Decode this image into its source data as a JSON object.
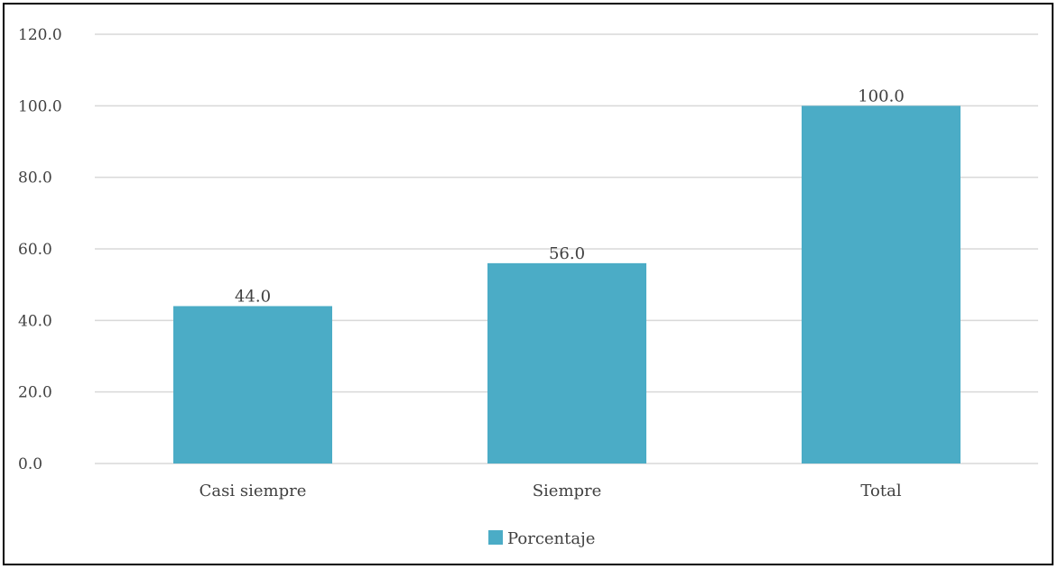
{
  "chart_data": {
    "type": "bar",
    "categories": [
      "Casi siempre",
      "Siempre",
      "Total"
    ],
    "series": [
      {
        "name": "Porcentaje",
        "values": [
          44.0,
          56.0,
          100.0
        ],
        "color": "#4BACC6"
      }
    ],
    "ylim": [
      0,
      120
    ],
    "yticks": [
      0,
      20,
      40,
      60,
      80,
      100,
      120
    ],
    "ytick_labels": [
      "0.0",
      "20.0",
      "40.0",
      "60.0",
      "80.0",
      "100.0",
      "120.0"
    ],
    "data_labels": [
      "44.0",
      "56.0",
      "100.0"
    ],
    "grid": true,
    "gridline_color": "#D9D9D9",
    "legend_position": "bottom"
  }
}
